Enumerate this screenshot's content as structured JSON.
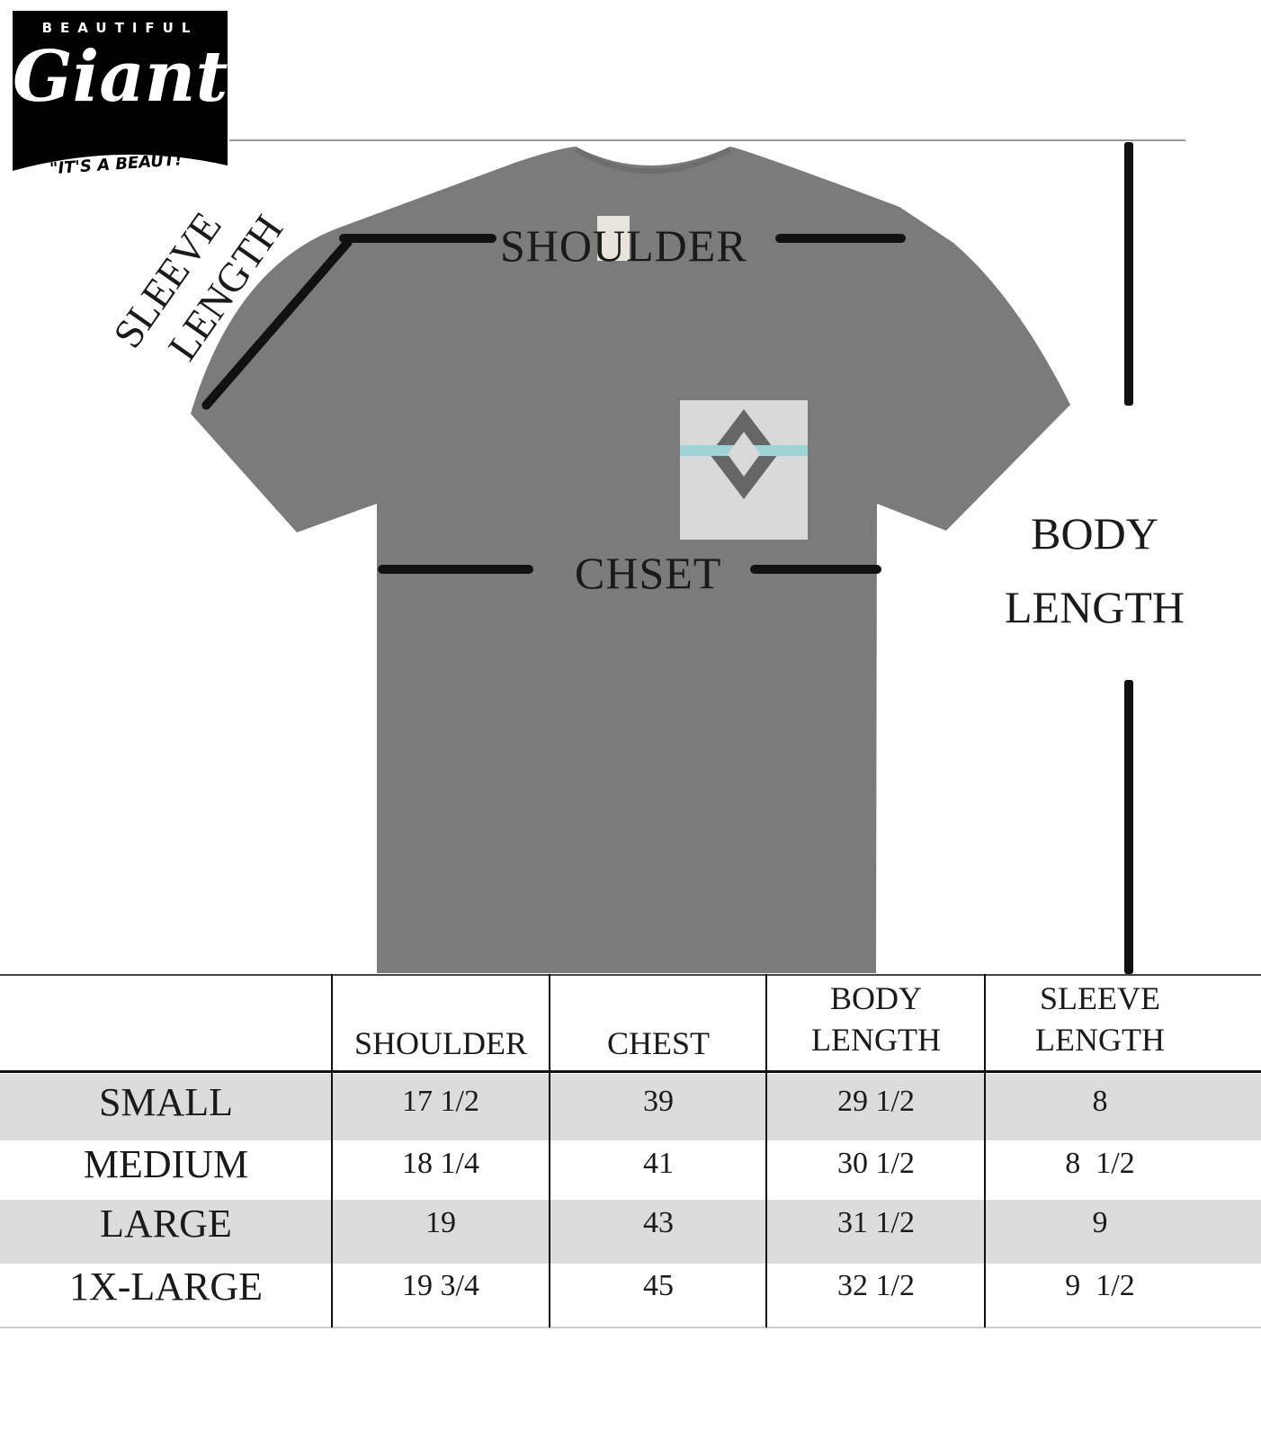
{
  "brand": {
    "top": "BEAUTIFUL",
    "name": "Giant",
    "tagline": "\"IT'S A BEAUT!\""
  },
  "diagram": {
    "shirt_color": "#7b7b7b",
    "labels": {
      "shoulder": "SHOULDER",
      "chest": "CHSET",
      "sleeve_line1": "SLEEVE",
      "sleeve_line2": "LENGTH",
      "body_line1": "BODY",
      "body_line2": "LENGTH"
    }
  },
  "table": {
    "headers": [
      {
        "line1": "",
        "line2": ""
      },
      {
        "line1": "",
        "line2": "SHOULDER"
      },
      {
        "line1": "",
        "line2": "CHEST"
      },
      {
        "line1": "BODY",
        "line2": "LENGTH"
      },
      {
        "line1": "SLEEVE",
        "line2": "LENGTH"
      }
    ],
    "rows": [
      {
        "size": "SMALL",
        "shoulder": "17 1/2",
        "chest": "39",
        "body_length": "29 1/2",
        "sleeve_length": "8"
      },
      {
        "size": "MEDIUM",
        "shoulder": "18 1/4",
        "chest": "41",
        "body_length": "30 1/2",
        "sleeve_length": "8  1/2"
      },
      {
        "size": "LARGE",
        "shoulder": "19",
        "chest": "43",
        "body_length": "31 1/2",
        "sleeve_length": "9"
      },
      {
        "size": "1X-LARGE",
        "shoulder": "19 3/4",
        "chest": "45",
        "body_length": "32 1/2",
        "sleeve_length": "9  1/2"
      }
    ],
    "band_color": "#dcdcdc"
  }
}
